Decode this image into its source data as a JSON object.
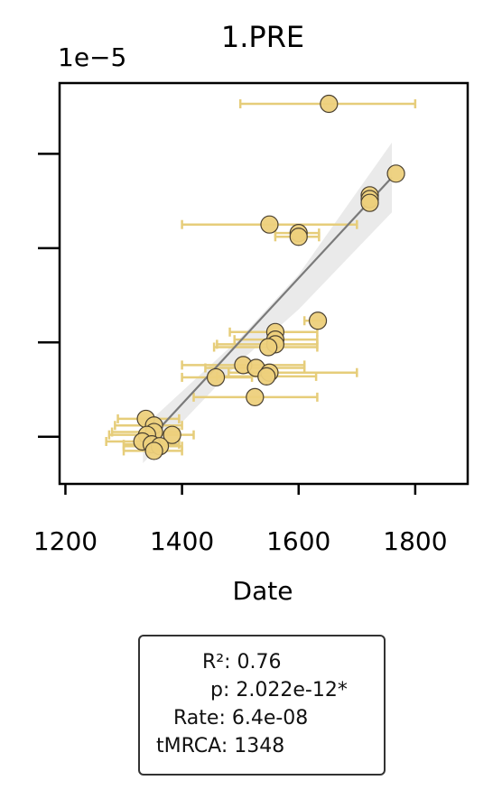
{
  "chart_data": {
    "type": "scatter",
    "title": "1.PRE",
    "xlabel": "Date",
    "ylabel": "",
    "y_scale_label": "1e−5",
    "xlim": [
      1190,
      1890
    ],
    "x_ticks": [
      1200,
      1400,
      1600,
      1800
    ],
    "ylim": [
      0,
      4.25
    ],
    "y_ticks": [
      0.5,
      1.5,
      2.5,
      3.5
    ],
    "y_tick_labels_shown": false,
    "grid": false,
    "colors": {
      "point_fill": "#edd07c",
      "point_edge": "#4a4030",
      "error_bar": "#e6cd7a",
      "regression_line": "#7a7a7a",
      "confidence_band": "#dcdcdc"
    },
    "points": [
      {
        "x": 1652,
        "y": 4.03,
        "xerr": [
          1500,
          1800
        ]
      },
      {
        "x": 1767,
        "y": 3.29,
        "xerr": [
          1767,
          1767
        ]
      },
      {
        "x": 1722,
        "y": 3.06,
        "xerr": [
          1715,
          1730
        ]
      },
      {
        "x": 1722,
        "y": 3.02,
        "xerr": [
          1715,
          1730
        ]
      },
      {
        "x": 1722,
        "y": 2.98,
        "xerr": [
          1715,
          1730
        ]
      },
      {
        "x": 1550,
        "y": 2.75,
        "xerr": [
          1400,
          1700
        ]
      },
      {
        "x": 1600,
        "y": 2.66,
        "xerr": [
          1560,
          1635
        ]
      },
      {
        "x": 1600,
        "y": 2.62,
        "xerr": [
          1560,
          1635
        ]
      },
      {
        "x": 1633,
        "y": 1.73,
        "xerr": [
          1610,
          1645
        ]
      },
      {
        "x": 1560,
        "y": 1.61,
        "xerr": [
          1482,
          1632
        ]
      },
      {
        "x": 1560,
        "y": 1.53,
        "xerr": [
          1490,
          1632
        ]
      },
      {
        "x": 1560,
        "y": 1.48,
        "xerr": [
          1460,
          1632
        ]
      },
      {
        "x": 1548,
        "y": 1.45,
        "xerr": [
          1455,
          1632
        ]
      },
      {
        "x": 1505,
        "y": 1.26,
        "xerr": [
          1400,
          1610
        ]
      },
      {
        "x": 1527,
        "y": 1.23,
        "xerr": [
          1440,
          1610
        ]
      },
      {
        "x": 1550,
        "y": 1.18,
        "xerr": [
          1480,
          1700
        ]
      },
      {
        "x": 1545,
        "y": 1.14,
        "xerr": [
          1460,
          1630
        ]
      },
      {
        "x": 1458,
        "y": 1.13,
        "xerr": [
          1400,
          1520
        ]
      },
      {
        "x": 1525,
        "y": 0.92,
        "xerr": [
          1420,
          1632
        ]
      },
      {
        "x": 1338,
        "y": 0.69,
        "xerr": [
          1290,
          1395
        ]
      },
      {
        "x": 1352,
        "y": 0.62,
        "xerr": [
          1285,
          1400
        ]
      },
      {
        "x": 1352,
        "y": 0.55,
        "xerr": [
          1280,
          1395
        ]
      },
      {
        "x": 1340,
        "y": 0.52,
        "xerr": [
          1275,
          1395
        ]
      },
      {
        "x": 1383,
        "y": 0.52,
        "xerr": [
          1350,
          1420
        ]
      },
      {
        "x": 1332,
        "y": 0.45,
        "xerr": [
          1270,
          1395
        ]
      },
      {
        "x": 1348,
        "y": 0.42,
        "xerr": [
          1300,
          1395
        ]
      },
      {
        "x": 1362,
        "y": 0.4,
        "xerr": [
          1300,
          1400
        ]
      },
      {
        "x": 1352,
        "y": 0.35,
        "xerr": [
          1300,
          1400
        ]
      }
    ],
    "regression": {
      "x0": 1333,
      "y0": 0.4,
      "x1": 1760,
      "y1": 3.25
    },
    "confidence_band": [
      {
        "x": 1333,
        "lo": 0.22,
        "hi": 0.6
      },
      {
        "x": 1500,
        "lo": 1.3,
        "hi": 1.55
      },
      {
        "x": 1600,
        "lo": 1.85,
        "hi": 2.22
      },
      {
        "x": 1760,
        "lo": 2.88,
        "hi": 3.62
      }
    ]
  },
  "stats": {
    "r2": "R²: 0.76",
    "p": "p: 2.022e-12*",
    "rate": "Rate: 6.4e-08",
    "tmrca": "tMRCA: 1348"
  }
}
